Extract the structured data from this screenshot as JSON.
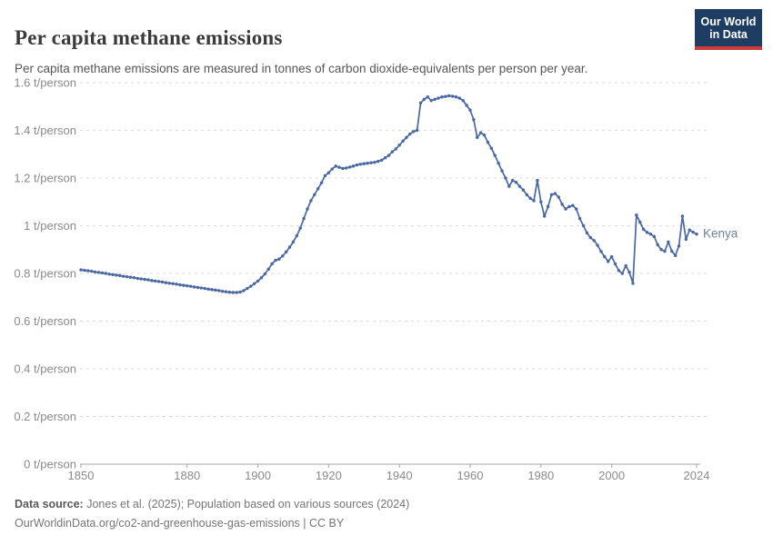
{
  "header": {
    "title": "Per capita methane emissions",
    "subtitle": "Per capita methane emissions are measured in tonnes of carbon dioxide-equivalents per person per year.",
    "logo": {
      "line1": "Our World",
      "line2": "in Data"
    }
  },
  "footer": {
    "source_label": "Data source:",
    "source_text": " Jones et al. (2025); Population based on various sources (2024)",
    "license_line": "OurWorldinData.org/co2-and-greenhouse-gas-emissions | CC BY"
  },
  "colors": {
    "series_line": "#4a68a1",
    "series_label": "#6d809e",
    "grid": "#dadada",
    "axis": "#a6a6a6",
    "tick_text": "#8a8a8a",
    "logo_bg": "#1d3d63",
    "logo_red": "#cf3a3a"
  },
  "chart_data": {
    "type": "line",
    "title": "Per capita methane emissions",
    "subtitle": "Per capita methane emissions are measured in tonnes of carbon dioxide-equivalents per person per year.",
    "unit": "t/person",
    "xlabel": "",
    "ylabel": "t/person",
    "xlim": [
      1850,
      2024
    ],
    "ylim": [
      0,
      1.6
    ],
    "grid": "horizontal-dashed",
    "legend_position": "end-of-line-label",
    "x_ticks": [
      1850,
      1880,
      1900,
      1920,
      1940,
      1960,
      1980,
      2000,
      2024
    ],
    "y_ticks": [
      {
        "value": 0,
        "label": "0 t/person"
      },
      {
        "value": 0.2,
        "label": "0.2 t/person"
      },
      {
        "value": 0.4,
        "label": "0.4 t/person"
      },
      {
        "value": 0.6,
        "label": "0.6 t/person"
      },
      {
        "value": 0.8,
        "label": "0.8 t/person"
      },
      {
        "value": 1,
        "label": "1 t/person"
      },
      {
        "value": 1.2,
        "label": "1.2 t/person"
      },
      {
        "value": 1.4,
        "label": "1.4 t/person"
      },
      {
        "value": 1.6,
        "label": "1.6 t/person"
      }
    ],
    "series": [
      {
        "name": "Kenya",
        "color": "#4a68a1",
        "label_color": "#6d809e",
        "x_start": 1850,
        "x_step": 1,
        "values": [
          0.815,
          0.813,
          0.811,
          0.809,
          0.806,
          0.804,
          0.802,
          0.8,
          0.797,
          0.795,
          0.793,
          0.791,
          0.788,
          0.786,
          0.784,
          0.782,
          0.779,
          0.777,
          0.775,
          0.773,
          0.77,
          0.768,
          0.766,
          0.764,
          0.761,
          0.759,
          0.757,
          0.755,
          0.752,
          0.75,
          0.748,
          0.746,
          0.743,
          0.741,
          0.739,
          0.737,
          0.734,
          0.732,
          0.73,
          0.728,
          0.725,
          0.723,
          0.721,
          0.72,
          0.72,
          0.722,
          0.728,
          0.737,
          0.746,
          0.757,
          0.768,
          0.782,
          0.798,
          0.818,
          0.84,
          0.855,
          0.86,
          0.873,
          0.89,
          0.91,
          0.932,
          0.958,
          0.99,
          1.03,
          1.07,
          1.105,
          1.13,
          1.155,
          1.18,
          1.21,
          1.222,
          1.238,
          1.25,
          1.245,
          1.24,
          1.242,
          1.246,
          1.25,
          1.255,
          1.258,
          1.26,
          1.262,
          1.264,
          1.266,
          1.27,
          1.275,
          1.285,
          1.295,
          1.31,
          1.322,
          1.338,
          1.355,
          1.37,
          1.385,
          1.395,
          1.4,
          1.515,
          1.53,
          1.54,
          1.525,
          1.53,
          1.535,
          1.54,
          1.542,
          1.545,
          1.543,
          1.54,
          1.535,
          1.525,
          1.505,
          1.485,
          1.445,
          1.37,
          1.39,
          1.38,
          1.35,
          1.325,
          1.295,
          1.262,
          1.23,
          1.2,
          1.165,
          1.19,
          1.182,
          1.165,
          1.15,
          1.13,
          1.115,
          1.105,
          1.19,
          1.1,
          1.04,
          1.08,
          1.13,
          1.135,
          1.12,
          1.09,
          1.07,
          1.08,
          1.085,
          1.07,
          1.03,
          1.0,
          0.97,
          0.95,
          0.938,
          0.918,
          0.892,
          0.87,
          0.85,
          0.87,
          0.84,
          0.812,
          0.8,
          0.832,
          0.805,
          0.758,
          1.045,
          1.015,
          0.985,
          0.972,
          0.965,
          0.955,
          0.92,
          0.9,
          0.893,
          0.932,
          0.893,
          0.875,
          0.915,
          1.04,
          0.943,
          0.982,
          0.973,
          0.965
        ]
      }
    ]
  }
}
